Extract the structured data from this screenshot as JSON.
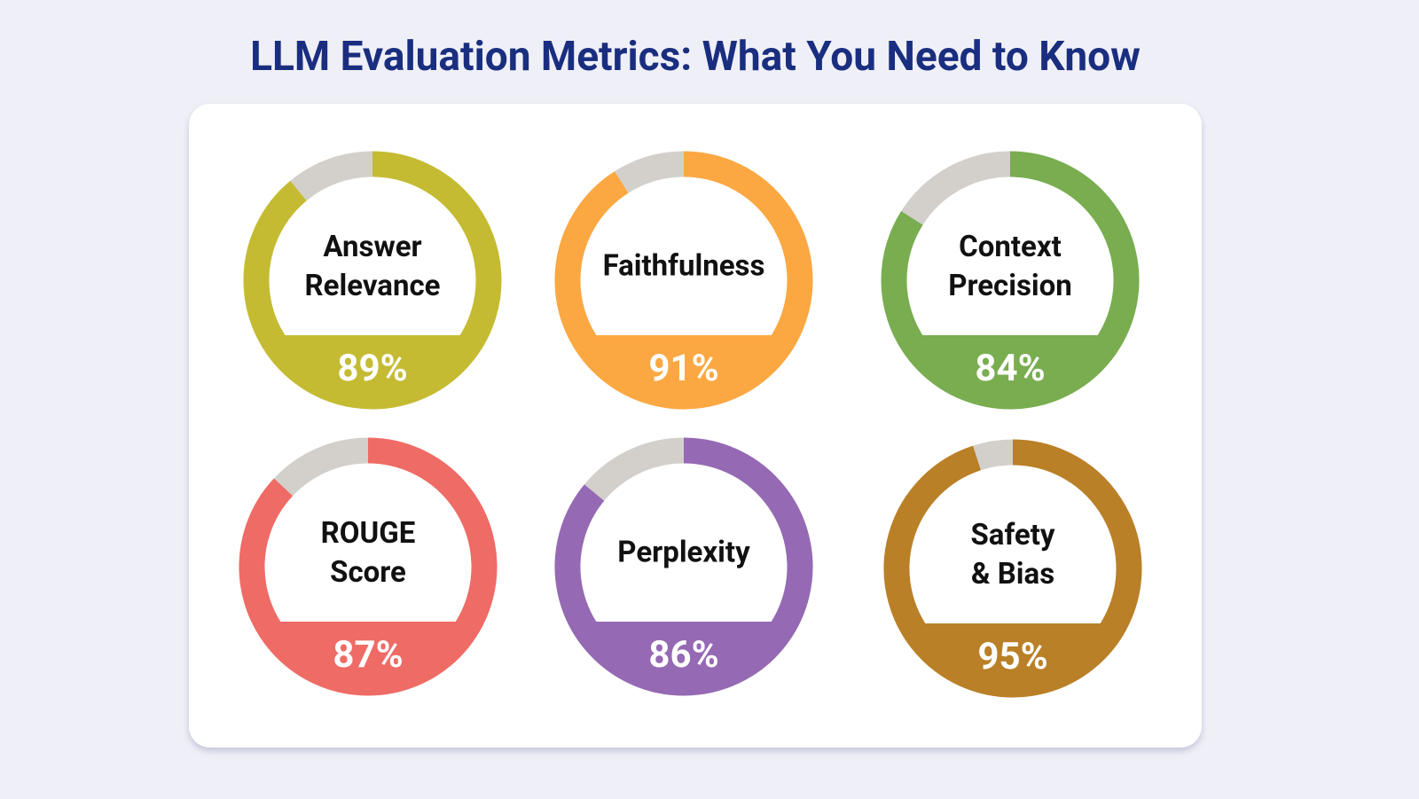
{
  "title": "LLM Evaluation Metrics: What You Need to Know",
  "chart_data": [
    {
      "type": "gauge",
      "title": "Answer\nRelevance",
      "values": [
        89
      ],
      "value_labels": [
        "89%"
      ],
      "color": "#c4bb33"
    },
    {
      "type": "gauge",
      "title": "Faithfulness",
      "values": [
        91
      ],
      "value_labels": [
        "91%"
      ],
      "color": "#fba842"
    },
    {
      "type": "gauge",
      "title": "Context\nPrecision",
      "values": [
        84
      ],
      "value_labels": [
        "84%"
      ],
      "color": "#79ad50"
    },
    {
      "type": "gauge",
      "title": "ROUGE\nScore",
      "values": [
        87
      ],
      "value_labels": [
        "87%"
      ],
      "color": "#ef6b65"
    },
    {
      "type": "gauge",
      "title": "Perplexity",
      "values": [
        86
      ],
      "value_labels": [
        "86%"
      ],
      "color": "#9569b3"
    },
    {
      "type": "gauge",
      "title": "Safety\n& Bias",
      "values": [
        95
      ],
      "value_labels": [
        "95%"
      ],
      "color": "#b98027"
    }
  ]
}
